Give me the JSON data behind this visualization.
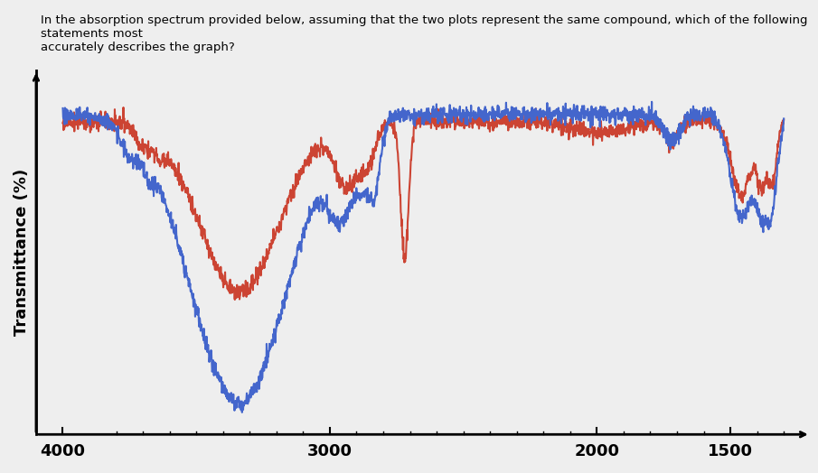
{
  "title_text": "In the absorption spectrum provided below, assuming that the two plots represent the same compound, which of the following statements most\naccurately describes the graph?",
  "ylabel": "Transmittance (%)",
  "xlabel_ticks": [
    4000,
    3000,
    2000,
    1500
  ],
  "xmin": 4000,
  "xmax": 1300,
  "background_color": "#f0f0f0",
  "blue_color": "#4466cc",
  "red_color": "#cc4433",
  "line_width": 1.5
}
